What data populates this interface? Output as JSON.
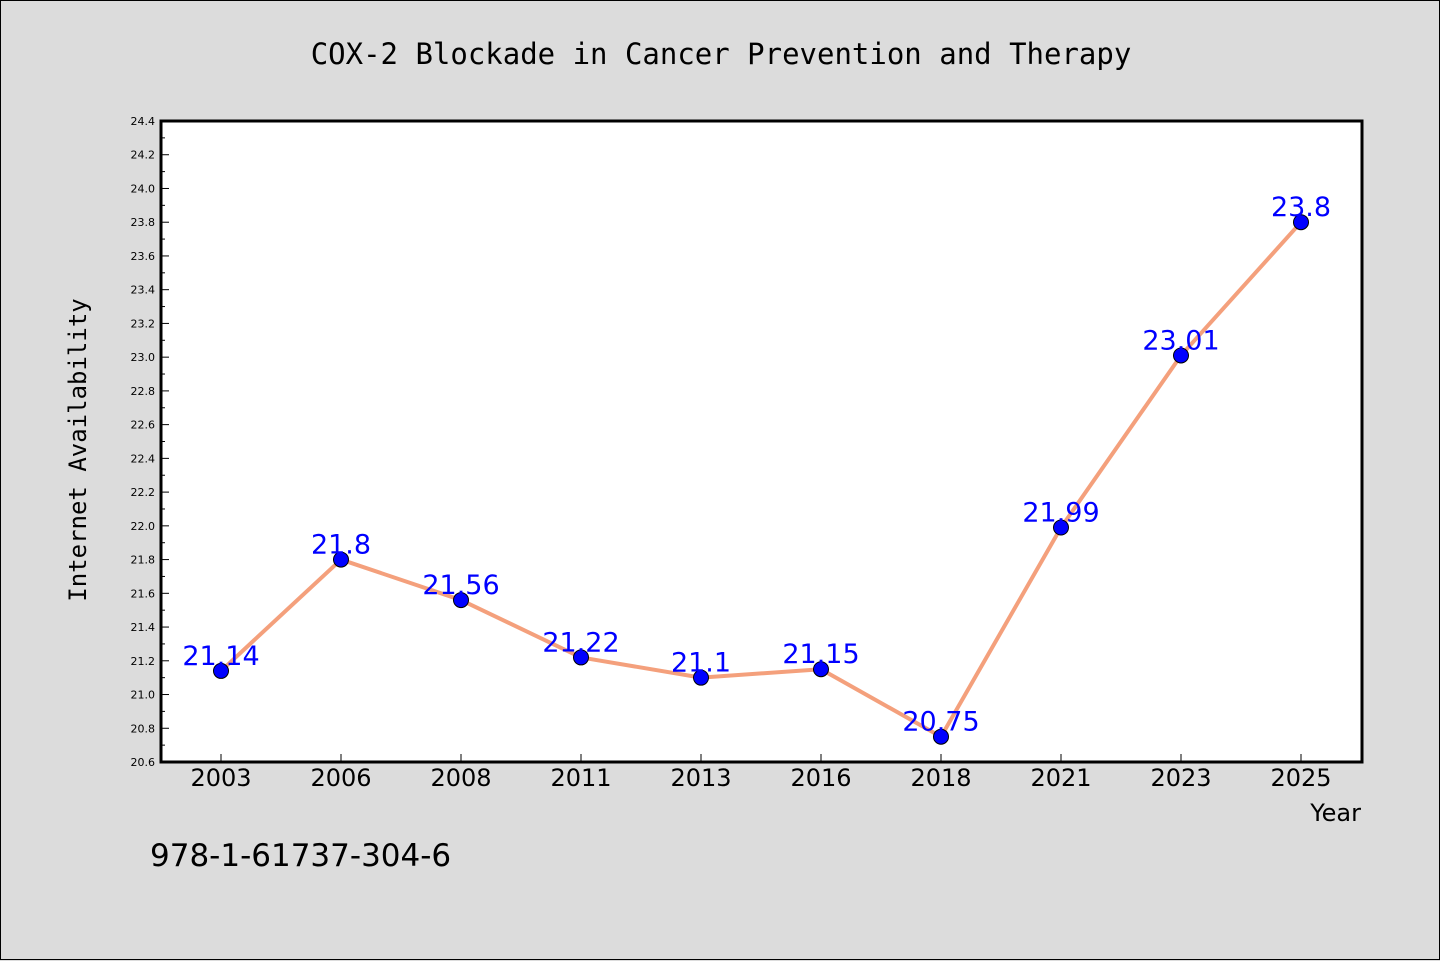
{
  "chart_data": {
    "type": "line",
    "title": "COX-2 Blockade in Cancer Prevention and Therapy",
    "xlabel": "Year",
    "ylabel": "Internet Availability",
    "categories": [
      "2003",
      "2006",
      "2008",
      "2011",
      "2013",
      "2016",
      "2018",
      "2021",
      "2023",
      "2025"
    ],
    "series": [
      {
        "values": [
          21.14,
          21.8,
          21.56,
          21.22,
          21.1,
          21.15,
          20.75,
          21.99,
          23.01,
          23.8
        ],
        "labels": [
          "21.14",
          "21.8",
          "21.56",
          "21.22",
          "21.1",
          "21.15",
          "20.75",
          "21.99",
          "23.01",
          "23.8"
        ],
        "line_color": "#f4a07c",
        "marker_color": "#0000ff",
        "label_color": "#0000ff"
      }
    ],
    "ylim": [
      20.6,
      24.4
    ],
    "yticks": [
      "20.6",
      "20.8",
      "21.0",
      "21.2",
      "21.4",
      "21.6",
      "21.8",
      "22.0",
      "22.2",
      "22.4",
      "22.6",
      "22.8",
      "23.0",
      "23.2",
      "23.4",
      "23.6",
      "23.8",
      "24.0",
      "24.2",
      "24.4"
    ],
    "grid": false,
    "legend": "none"
  },
  "footer_text": "978-1-61737-304-6",
  "colors": {
    "background": "#dcdcdc",
    "plot_background": "#ffffff",
    "axis": "#000000"
  }
}
